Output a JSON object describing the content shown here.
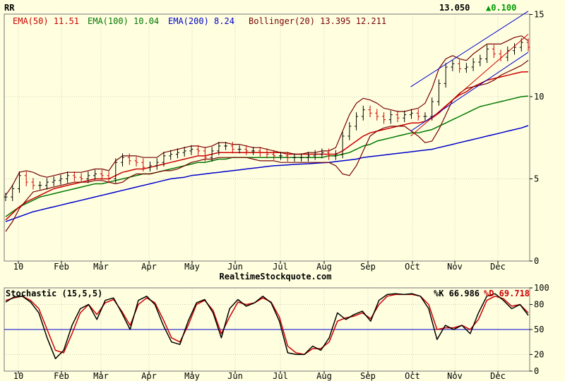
{
  "chart_data": [
    {
      "type": "line",
      "title": "RR",
      "last_price": "13.050",
      "change": "▲0.100",
      "x_months": [
        "10",
        "Feb",
        "Mar",
        "Apr",
        "May",
        "Jun",
        "Jul",
        "Aug",
        "Sep",
        "Oct",
        "Nov",
        "Dec"
      ],
      "ylim": [
        0,
        15
      ],
      "y_ticks": [
        "0",
        "5",
        "10",
        "15"
      ],
      "grid": true,
      "indicators": [
        {
          "label": "EMA(50)",
          "value": "11.51",
          "color": "#CC0000"
        },
        {
          "label": "EMA(100)",
          "value": "10.04",
          "color": "#007700"
        },
        {
          "label": "EMA(200)",
          "value": "8.24",
          "color": "#0000CC"
        },
        {
          "label": "Bollinger(20)",
          "value": "13.395 12.211",
          "color": "#770000"
        }
      ],
      "price_close": [
        3.9,
        4.4,
        5.2,
        4.8,
        4.6,
        4.6,
        4.8,
        4.9,
        5.0,
        5.2,
        5.1,
        5.0,
        5.2,
        5.3,
        5.2,
        5.0,
        6.0,
        6.3,
        6.1,
        6.0,
        5.7,
        5.8,
        6.0,
        6.4,
        6.5,
        6.6,
        6.7,
        6.8,
        6.7,
        6.3,
        6.7,
        7.0,
        7.0,
        6.8,
        6.8,
        6.7,
        6.7,
        6.6,
        6.5,
        6.4,
        6.4,
        6.3,
        6.3,
        6.3,
        6.4,
        6.5,
        6.6,
        6.4,
        6.5,
        7.6,
        8.2,
        8.8,
        9.2,
        9.0,
        8.8,
        8.6,
        8.9,
        8.7,
        8.9,
        9.0,
        8.8,
        8.8,
        9.7,
        10.8,
        11.8,
        12.0,
        11.7,
        11.8,
        12.1,
        12.3,
        12.9,
        12.6,
        12.4,
        12.8,
        13.0,
        13.3,
        13.0
      ],
      "ema50": [
        2.5,
        2.9,
        3.3,
        3.6,
        3.8,
        4.0,
        4.2,
        4.4,
        4.5,
        4.6,
        4.7,
        4.8,
        4.9,
        5.0,
        5.0,
        5.0,
        5.2,
        5.4,
        5.5,
        5.6,
        5.6,
        5.7,
        5.8,
        5.9,
        6.0,
        6.1,
        6.2,
        6.3,
        6.4,
        6.4,
        6.5,
        6.6,
        6.6,
        6.6,
        6.6,
        6.6,
        6.6,
        6.6,
        6.6,
        6.6,
        6.6,
        6.5,
        6.5,
        6.5,
        6.5,
        6.5,
        6.5,
        6.5,
        6.5,
        6.7,
        7.0,
        7.3,
        7.6,
        7.8,
        7.9,
        8.0,
        8.1,
        8.2,
        8.3,
        8.4,
        8.4,
        8.5,
        8.7,
        9.0,
        9.4,
        9.8,
        10.1,
        10.3,
        10.6,
        10.8,
        11.0,
        11.1,
        11.2,
        11.3,
        11.4,
        11.5,
        11.51
      ],
      "ema100": [
        2.7,
        3.0,
        3.3,
        3.5,
        3.7,
        3.9,
        4.0,
        4.1,
        4.2,
        4.3,
        4.4,
        4.5,
        4.6,
        4.7,
        4.7,
        4.8,
        4.9,
        5.0,
        5.1,
        5.2,
        5.3,
        5.3,
        5.4,
        5.5,
        5.6,
        5.7,
        5.8,
        5.9,
        6.0,
        6.0,
        6.1,
        6.2,
        6.2,
        6.3,
        6.3,
        6.3,
        6.3,
        6.3,
        6.3,
        6.3,
        6.3,
        6.3,
        6.3,
        6.3,
        6.3,
        6.3,
        6.3,
        6.4,
        6.4,
        6.5,
        6.6,
        6.8,
        7.0,
        7.1,
        7.3,
        7.4,
        7.5,
        7.6,
        7.7,
        7.8,
        7.8,
        7.9,
        8.0,
        8.2,
        8.4,
        8.6,
        8.8,
        9.0,
        9.2,
        9.4,
        9.5,
        9.6,
        9.7,
        9.8,
        9.9,
        10.0,
        10.04
      ],
      "ema200": [
        2.4,
        2.55,
        2.7,
        2.85,
        3.0,
        3.1,
        3.2,
        3.3,
        3.4,
        3.5,
        3.6,
        3.7,
        3.8,
        3.9,
        4.0,
        4.1,
        4.2,
        4.3,
        4.4,
        4.5,
        4.6,
        4.7,
        4.8,
        4.9,
        5.0,
        5.05,
        5.1,
        5.2,
        5.25,
        5.3,
        5.35,
        5.4,
        5.45,
        5.5,
        5.55,
        5.6,
        5.65,
        5.7,
        5.75,
        5.8,
        5.82,
        5.85,
        5.88,
        5.9,
        5.92,
        5.95,
        5.98,
        6.0,
        6.05,
        6.1,
        6.15,
        6.2,
        6.3,
        6.35,
        6.4,
        6.45,
        6.5,
        6.55,
        6.6,
        6.65,
        6.7,
        6.75,
        6.8,
        6.9,
        7.0,
        7.1,
        7.2,
        7.3,
        7.4,
        7.5,
        7.6,
        7.7,
        7.8,
        7.9,
        8.0,
        8.1,
        8.24
      ],
      "bollinger_upper": [
        4.0,
        4.6,
        5.4,
        5.5,
        5.4,
        5.2,
        5.1,
        5.2,
        5.3,
        5.4,
        5.4,
        5.4,
        5.5,
        5.6,
        5.6,
        5.5,
        6.1,
        6.4,
        6.4,
        6.4,
        6.3,
        6.3,
        6.3,
        6.6,
        6.7,
        6.8,
        6.9,
        7.0,
        7.0,
        6.9,
        7.0,
        7.2,
        7.2,
        7.1,
        7.1,
        7.0,
        6.9,
        6.9,
        6.8,
        6.7,
        6.6,
        6.6,
        6.5,
        6.5,
        6.6,
        6.6,
        6.7,
        6.7,
        6.9,
        7.9,
        8.9,
        9.6,
        9.9,
        9.8,
        9.6,
        9.3,
        9.2,
        9.1,
        9.1,
        9.2,
        9.3,
        9.6,
        10.5,
        11.7,
        12.3,
        12.5,
        12.3,
        12.2,
        12.6,
        12.9,
        13.2,
        13.2,
        13.2,
        13.4,
        13.6,
        13.7,
        13.4
      ],
      "bollinger_lower": [
        1.8,
        2.4,
        3.2,
        3.7,
        4.2,
        4.3,
        4.4,
        4.5,
        4.6,
        4.7,
        4.8,
        4.8,
        4.8,
        4.9,
        4.9,
        4.8,
        4.7,
        4.8,
        5.1,
        5.3,
        5.3,
        5.3,
        5.4,
        5.5,
        5.5,
        5.6,
        5.8,
        6.0,
        6.1,
        6.2,
        6.2,
        6.3,
        6.3,
        6.3,
        6.3,
        6.3,
        6.2,
        6.1,
        6.1,
        6.1,
        6.0,
        6.0,
        6.0,
        6.0,
        6.0,
        6.0,
        6.0,
        6.0,
        5.8,
        5.3,
        5.2,
        5.8,
        6.7,
        7.6,
        7.9,
        8.1,
        8.2,
        8.2,
        8.2,
        7.9,
        7.6,
        7.2,
        7.3,
        8.0,
        8.9,
        9.8,
        10.2,
        10.5,
        10.6,
        10.7,
        10.8,
        11.0,
        11.3,
        11.5,
        11.7,
        11.9,
        12.211
      ],
      "trendlines": [
        {
          "x": [
            0.775,
            1.0
          ],
          "y": [
            10.6,
            15.2
          ],
          "color": "#0000CC"
        },
        {
          "x": [
            0.775,
            1.0
          ],
          "y": [
            7.9,
            12.7
          ],
          "color": "#0000CC"
        },
        {
          "x": [
            0.775,
            1.0
          ],
          "y": [
            7.6,
            13.8
          ],
          "color": "#CC0000"
        }
      ],
      "watermark": "RealtimeStockquote.com"
    },
    {
      "type": "line",
      "title": "Stochastic (15,5,5)",
      "k_label": "%K 66.986",
      "d_label": "%D 69.718",
      "x_months": [
        "10",
        "Feb",
        "Mar",
        "Apr",
        "May",
        "Jun",
        "Jul",
        "Aug",
        "Sep",
        "Oct",
        "Nov",
        "Dec"
      ],
      "ylim": [
        0,
        100
      ],
      "y_ticks": [
        "0",
        "20",
        "50",
        "80",
        "100"
      ],
      "reference_line": 50,
      "percent_k": [
        83,
        89,
        90,
        83,
        70,
        40,
        15,
        25,
        55,
        75,
        80,
        62,
        85,
        88,
        70,
        50,
        85,
        90,
        80,
        55,
        35,
        32,
        60,
        82,
        86,
        70,
        40,
        75,
        86,
        78,
        82,
        90,
        82,
        60,
        22,
        20,
        20,
        30,
        25,
        40,
        70,
        62,
        68,
        72,
        60,
        85,
        92,
        93,
        92,
        93,
        90,
        75,
        38,
        55,
        50,
        55,
        45,
        70,
        90,
        93,
        85,
        75,
        80,
        67
      ],
      "percent_d": [
        85,
        88,
        90,
        85,
        75,
        50,
        25,
        22,
        45,
        70,
        80,
        68,
        82,
        86,
        72,
        55,
        80,
        88,
        82,
        62,
        40,
        35,
        55,
        80,
        85,
        73,
        45,
        65,
        83,
        80,
        82,
        88,
        83,
        65,
        30,
        22,
        20,
        27,
        27,
        35,
        60,
        64,
        66,
        70,
        63,
        80,
        90,
        92,
        92,
        92,
        90,
        80,
        50,
        52,
        52,
        55,
        50,
        62,
        85,
        90,
        87,
        78,
        80,
        70
      ]
    }
  ]
}
